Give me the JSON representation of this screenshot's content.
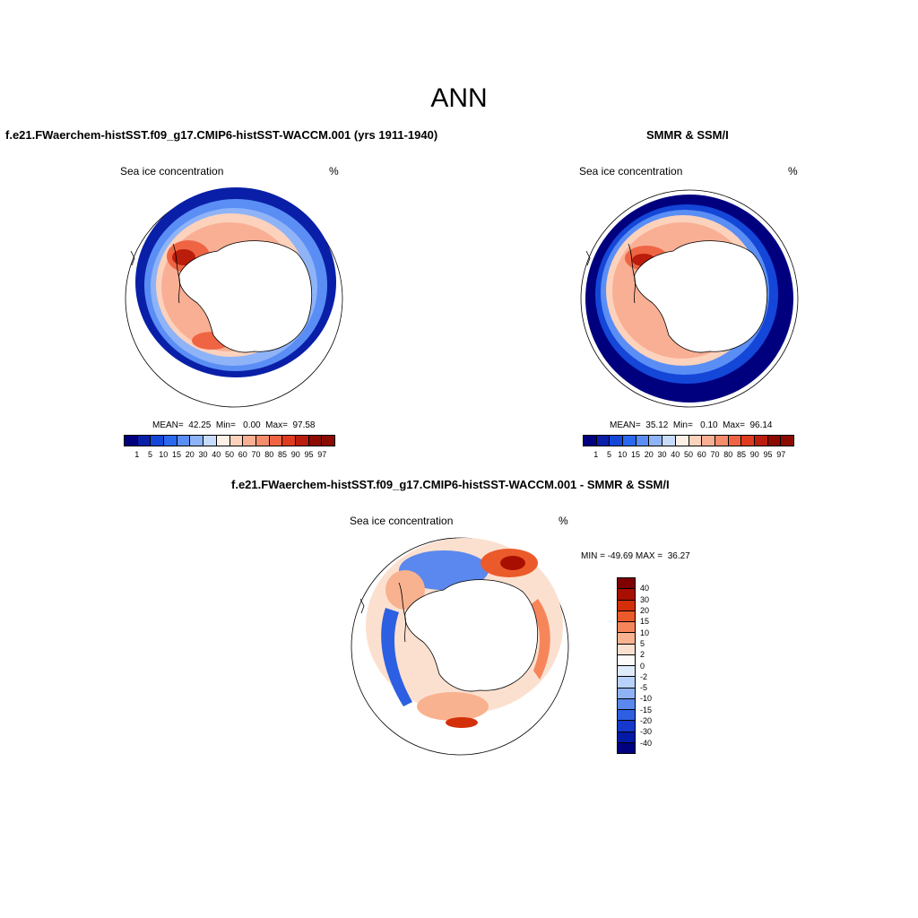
{
  "title": "ANN",
  "colors": {
    "conc_scale": [
      "#00007f",
      "#0a1fa8",
      "#1446d8",
      "#2b68f0",
      "#5a8ef5",
      "#8fb3f7",
      "#c7dcfb",
      "#fdf0e6",
      "#fcd2bd",
      "#f9af94",
      "#f58c6c",
      "#ef6544",
      "#df3b1f",
      "#bb1d0c",
      "#8c0b00"
    ],
    "diff_scale": [
      "#7f0000",
      "#a90f00",
      "#d3300a",
      "#eb5a2a",
      "#f7855a",
      "#f9b28f",
      "#fce0cf",
      "#fffafa",
      "#dfebfb",
      "#b9d2fa",
      "#8fb2f5",
      "#5b88ee",
      "#2d5fe3",
      "#1539cb",
      "#0419a6",
      "#000080"
    ],
    "land": "#ffffff",
    "outline": "#000000"
  },
  "panels": {
    "model": {
      "title": "f.e21.FWaerchem-histSST.f09_g17.CMIP6-histSST-WACCM.001 (yrs 1911-1940)",
      "field": "Sea ice concentration",
      "units": "%",
      "stats": "MEAN=  42.25  Min=   0.00  Max=  97.58",
      "tick_labels": [
        "1",
        "5",
        "10",
        "15",
        "20",
        "30",
        "40",
        "50",
        "60",
        "70",
        "80",
        "85",
        "90",
        "95",
        "97"
      ]
    },
    "obs": {
      "title": "SMMR & SSM/I",
      "field": "Sea ice concentration",
      "units": "%",
      "stats": "MEAN=  35.12  Min=   0.10  Max=  96.14",
      "tick_labels": [
        "1",
        "5",
        "10",
        "15",
        "20",
        "30",
        "40",
        "50",
        "60",
        "70",
        "80",
        "85",
        "90",
        "95",
        "97"
      ]
    },
    "diff": {
      "title": "f.e21.FWaerchem-histSST.f09_g17.CMIP6-histSST-WACCM.001 - SMMR & SSM/I",
      "field": "Sea ice concentration",
      "units": "%",
      "stats": "MIN = -49.69 MAX =  36.27",
      "tick_labels": [
        "40",
        "30",
        "20",
        "15",
        "10",
        "5",
        "2",
        "0",
        "-2",
        "-5",
        "-10",
        "-15",
        "-20",
        "-30",
        "-40"
      ]
    }
  }
}
